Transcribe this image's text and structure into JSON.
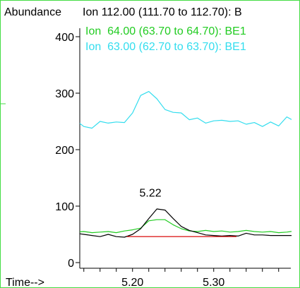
{
  "chart_data": {
    "type": "line",
    "ylabel": "Abundance",
    "xlabel": "Time-->",
    "xlim": [
      5.135,
      5.395
    ],
    "ylim": [
      0,
      400
    ],
    "y_ticks": [
      0,
      100,
      200,
      300,
      400
    ],
    "x_ticks": [
      5.2,
      5.3
    ],
    "x_tick_labels": [
      "5.20",
      "5.30"
    ],
    "legend": [
      "Ion 112.00 (111.70 to 112.70): B",
      "Ion  64.00 (63.70 to 64.70): BE1",
      "Ion  63.00 (62.70 to 63.70): BE1"
    ],
    "peak_label": {
      "text": "5.22",
      "x": 5.222,
      "y": 112
    },
    "colors": {
      "ion112": "#000000",
      "ion64": "#22cc22",
      "ion63": "#33ddee",
      "baseline": "#dd2222",
      "border": "#44dd44"
    },
    "series": [
      {
        "name": "Ion 112.00 (111.70 to 112.70): B",
        "x": [
          5.13,
          5.14,
          5.15,
          5.16,
          5.17,
          5.18,
          5.19,
          5.2,
          5.21,
          5.22,
          5.23,
          5.24,
          5.25,
          5.26,
          5.27,
          5.28,
          5.29,
          5.3,
          5.31,
          5.32,
          5.33,
          5.34,
          5.35,
          5.36,
          5.37,
          5.38,
          5.39,
          5.4
        ],
        "y": [
          52,
          50,
          48,
          46,
          50,
          46,
          45,
          50,
          60,
          78,
          95,
          93,
          78,
          64,
          57,
          53,
          49,
          48,
          47,
          48,
          47,
          52,
          49,
          49,
          48,
          48,
          48,
          48
        ]
      },
      {
        "name": "Ion  64.00 (63.70 to 64.70): BE1",
        "x": [
          5.13,
          5.14,
          5.15,
          5.16,
          5.17,
          5.18,
          5.19,
          5.2,
          5.21,
          5.22,
          5.23,
          5.24,
          5.25,
          5.26,
          5.27,
          5.28,
          5.29,
          5.3,
          5.31,
          5.32,
          5.33,
          5.34,
          5.35,
          5.36,
          5.37,
          5.38,
          5.39,
          5.4
        ],
        "y": [
          54,
          55,
          53,
          54,
          55,
          53,
          56,
          58,
          61,
          74,
          76,
          76,
          67,
          60,
          56,
          55,
          57,
          55,
          56,
          54,
          55,
          57,
          55,
          54,
          55,
          53,
          54,
          56
        ]
      },
      {
        "name": "Ion  63.00 (62.70 to 63.70): BE1",
        "x": [
          5.13,
          5.14,
          5.15,
          5.16,
          5.17,
          5.18,
          5.19,
          5.2,
          5.21,
          5.22,
          5.23,
          5.24,
          5.25,
          5.26,
          5.27,
          5.28,
          5.29,
          5.3,
          5.31,
          5.32,
          5.33,
          5.34,
          5.35,
          5.36,
          5.37,
          5.38,
          5.39,
          5.4
        ],
        "y": [
          252,
          241,
          238,
          250,
          247,
          249,
          248,
          265,
          296,
          303,
          290,
          271,
          266,
          265,
          253,
          256,
          247,
          251,
          252,
          250,
          251,
          245,
          248,
          241,
          249,
          242,
          258,
          250
        ]
      },
      {
        "name": "baseline",
        "x": [
          5.193,
          5.328
        ],
        "y": [
          46,
          46
        ]
      }
    ]
  }
}
